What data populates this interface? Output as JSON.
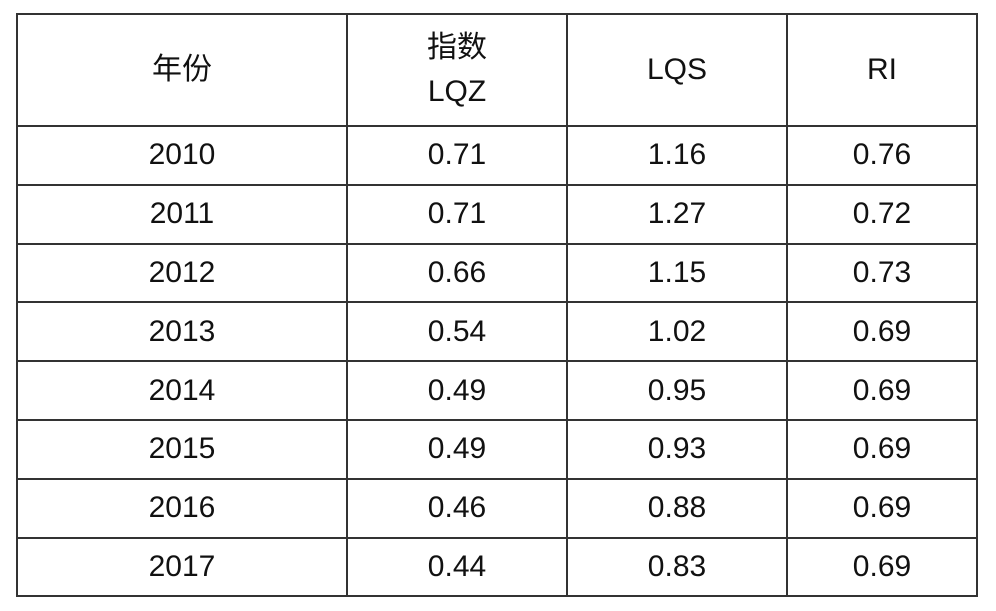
{
  "table": {
    "header": [
      "年份",
      "指数\nLQZ",
      "LQS",
      "RI"
    ],
    "rows": [
      [
        "2010",
        "0.71",
        "1.16",
        "0.76"
      ],
      [
        "2011",
        "0.71",
        "1.27",
        "0.72"
      ],
      [
        "2012",
        "0.66",
        "1.15",
        "0.73"
      ],
      [
        "2013",
        "0.54",
        "1.02",
        "0.69"
      ],
      [
        "2014",
        "0.49",
        "0.95",
        "0.69"
      ],
      [
        "2015",
        "0.49",
        "0.93",
        "0.69"
      ],
      [
        "2016",
        "0.46",
        "0.88",
        "0.69"
      ],
      [
        "2017",
        "0.44",
        "0.83",
        "0.69"
      ]
    ]
  }
}
